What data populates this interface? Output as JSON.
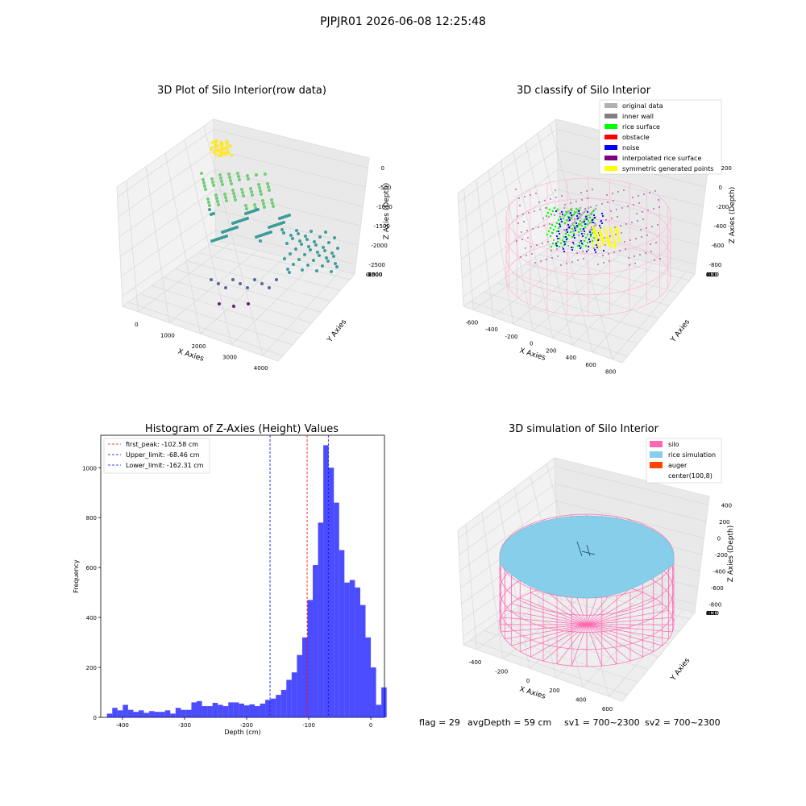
{
  "suptitle": "PJPJR01 2026-06-08 12:25:48",
  "footer": {
    "flag": "flag = 29",
    "avg_depth": "avgDepth = 59 cm",
    "sv1": "sv1 = 700~2300",
    "sv2": "sv2 = 700~2300"
  },
  "colors": {
    "hist_bar": "#0000ff",
    "peak_line": "#ff0000",
    "limit_line": "#0000ff",
    "silo": "#ff69b4",
    "rice_sim": "#87ceeb",
    "auger": "#ff4500",
    "pane": "#f2f2f2",
    "grid": "#d9d9d9"
  },
  "chart_data": [
    {
      "type": "scatter",
      "projection": "3d",
      "title": "3D Plot of Silo Interior(row data)",
      "xlabel": "X Axies",
      "ylabel": "Y Axies",
      "zlabel": "Z Axies (Depth)",
      "xticks": [
        "0",
        "1000",
        "2000",
        "3000",
        "4000"
      ],
      "yticks": [
        "0",
        "-500",
        "-1000",
        "-1500",
        "-2000",
        "-2500",
        "-3000",
        "-3500"
      ],
      "zticks": [
        "0",
        "-500",
        "-1000",
        "-1500",
        "-2000",
        "-2500"
      ],
      "xlim": [
        -500,
        4500
      ],
      "ylim": [
        -3700,
        200
      ],
      "zlim": [
        -2700,
        100
      ],
      "colormap": "viridis (by depth)",
      "grid": true
    },
    {
      "type": "scatter",
      "projection": "3d",
      "title": "3D classify of Silo Interior",
      "xlabel": "X Axies",
      "ylabel": "Y Axies",
      "zlabel": "Z Axies (Depth)",
      "xticks": [
        "-600",
        "-400",
        "-200",
        "0",
        "200",
        "400",
        "600",
        "800"
      ],
      "yticks": [
        "600",
        "400",
        "200",
        "0",
        "-200",
        "-400",
        "-600"
      ],
      "zticks": [
        "200",
        "0",
        "-200",
        "-400",
        "-600",
        "-800"
      ],
      "legend": [
        {
          "label": "original data",
          "color": "#b0b0b0"
        },
        {
          "label": "inner wall",
          "color": "#808080"
        },
        {
          "label": "rice surface",
          "color": "#00ff00"
        },
        {
          "label": "obstacle",
          "color": "#ff0000"
        },
        {
          "label": "noise",
          "color": "#0000ff"
        },
        {
          "label": "interpolated rice surface",
          "color": "#800080"
        },
        {
          "label": "symmetric generated points",
          "color": "#ffff00"
        }
      ],
      "legend_loc": "upper right",
      "grid": true
    },
    {
      "type": "bar",
      "title": "Histogram of Z-Axies (Height) Values",
      "xlabel": "Depth (cm)",
      "ylabel": "Frequency",
      "xticks": [
        -400,
        -300,
        -200,
        -100,
        0
      ],
      "yticks": [
        0,
        200,
        400,
        600,
        800,
        1000
      ],
      "xlim": [
        -435,
        22
      ],
      "ylim": [
        0,
        1130
      ],
      "bin_start": -425,
      "bin_width": 8.5,
      "values": [
        15,
        38,
        28,
        50,
        30,
        22,
        28,
        18,
        25,
        22,
        22,
        28,
        15,
        38,
        30,
        30,
        60,
        65,
        45,
        45,
        58,
        50,
        45,
        60,
        60,
        55,
        48,
        52,
        45,
        55,
        70,
        75,
        90,
        110,
        150,
        180,
        250,
        320,
        470,
        610,
        780,
        1090,
        1000,
        860,
        670,
        540,
        550,
        520,
        450,
        320,
        200,
        50,
        120
      ],
      "vlines": [
        {
          "label": "first_peak: -102.58 cm",
          "x": -102.58,
          "color": "#ff0000"
        },
        {
          "label": "Upper_limit: -68.46 cm",
          "x": -68.46,
          "color": "#0000ff"
        },
        {
          "label": "Lower_limit: -162.31 cm",
          "x": -162.31,
          "color": "#0000ff"
        }
      ],
      "legend_loc": "upper left",
      "grid": false
    },
    {
      "type": "surface",
      "projection": "3d",
      "title": "3D simulation of Silo Interior",
      "xlabel": "X Axies",
      "ylabel": "Y Axies",
      "zlabel": "Z Axies (Depth)",
      "xticks": [
        "-400",
        "-200",
        "0",
        "200",
        "400",
        "600"
      ],
      "yticks": [
        "600",
        "400",
        "200",
        "0",
        "-200",
        "-400",
        "-600"
      ],
      "zticks": [
        "400",
        "200",
        "0",
        "-200",
        "-400",
        "-600",
        "-800"
      ],
      "legend": [
        {
          "label": "silo",
          "color": "#ff69b4"
        },
        {
          "label": "rice simulation",
          "color": "#87ceeb"
        },
        {
          "label": "auger",
          "color": "#ff4500"
        },
        {
          "label": "center(100,8)",
          "color": ""
        }
      ],
      "legend_loc": "upper right",
      "grid": true
    }
  ]
}
